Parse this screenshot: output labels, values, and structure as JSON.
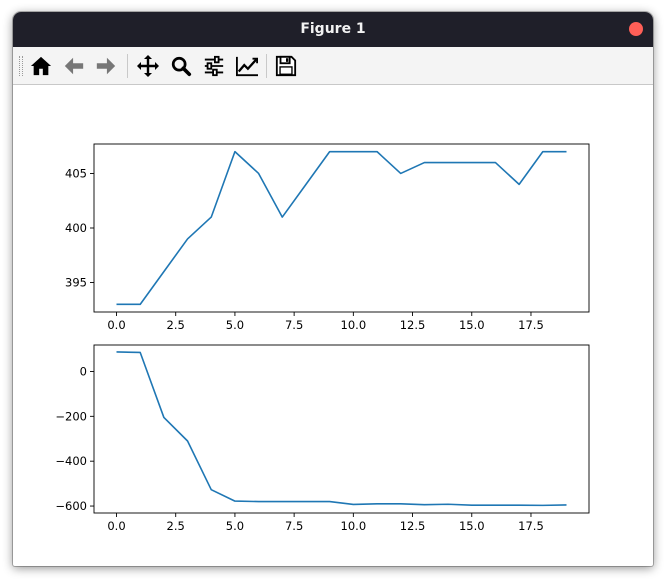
{
  "window": {
    "title": "Figure 1"
  },
  "toolbar": {
    "buttons": [
      {
        "name": "home-button",
        "icon": "home-icon"
      },
      {
        "name": "back-button",
        "icon": "arrow-left-icon"
      },
      {
        "name": "forward-button",
        "icon": "arrow-right-icon"
      },
      {
        "name": "pan-button",
        "icon": "move-icon"
      },
      {
        "name": "zoom-button",
        "icon": "magnifier-icon"
      },
      {
        "name": "configure-subplots-button",
        "icon": "sliders-icon"
      },
      {
        "name": "edit-axes-button",
        "icon": "line-chart-icon"
      },
      {
        "name": "save-button",
        "icon": "floppy-disk-icon"
      }
    ]
  },
  "colors": {
    "line": "#1f77b4",
    "titlebar": "#1f1f29",
    "close": "#ff5f57"
  },
  "chart_data": [
    {
      "type": "line",
      "x": [
        0,
        1,
        2,
        3,
        4,
        5,
        6,
        7,
        8,
        9,
        10,
        11,
        12,
        13,
        14,
        15,
        16,
        17,
        18,
        19
      ],
      "series": [
        {
          "values": [
            393,
            393,
            396,
            399,
            401,
            407,
            405,
            401,
            404,
            407,
            407,
            407,
            405,
            406,
            406,
            406,
            406,
            404,
            407,
            407
          ]
        }
      ],
      "xlim": [
        -0.95,
        19.95
      ],
      "ylim": [
        392.3,
        407.7
      ],
      "xticks": [
        0,
        2.5,
        5,
        7.5,
        10,
        12.5,
        15,
        17.5
      ],
      "xtick_labels": [
        "0.0",
        "2.5",
        "5.0",
        "7.5",
        "10.0",
        "12.5",
        "15.0",
        "17.5"
      ],
      "yticks": [
        395,
        400,
        405
      ],
      "ytick_labels": [
        "395",
        "400",
        "405"
      ],
      "grid": false
    },
    {
      "type": "line",
      "x": [
        0,
        1,
        2,
        3,
        4,
        5,
        6,
        7,
        8,
        9,
        10,
        11,
        12,
        13,
        14,
        15,
        16,
        17,
        18,
        19
      ],
      "series": [
        {
          "values": [
            87,
            85,
            -205,
            -310,
            -527,
            -578,
            -580,
            -580,
            -580,
            -580,
            -593,
            -590,
            -590,
            -594,
            -592,
            -596,
            -596,
            -596,
            -597,
            -595
          ]
        }
      ],
      "xlim": [
        -0.95,
        19.95
      ],
      "ylim": [
        -631,
        118
      ],
      "xticks": [
        0,
        2.5,
        5,
        7.5,
        10,
        12.5,
        15,
        17.5
      ],
      "xtick_labels": [
        "0.0",
        "2.5",
        "5.0",
        "7.5",
        "10.0",
        "12.5",
        "15.0",
        "17.5"
      ],
      "yticks": [
        0,
        -200,
        -400,
        -600
      ],
      "ytick_labels": [
        "0",
        "−200",
        "−400",
        "−600"
      ],
      "grid": false
    }
  ]
}
